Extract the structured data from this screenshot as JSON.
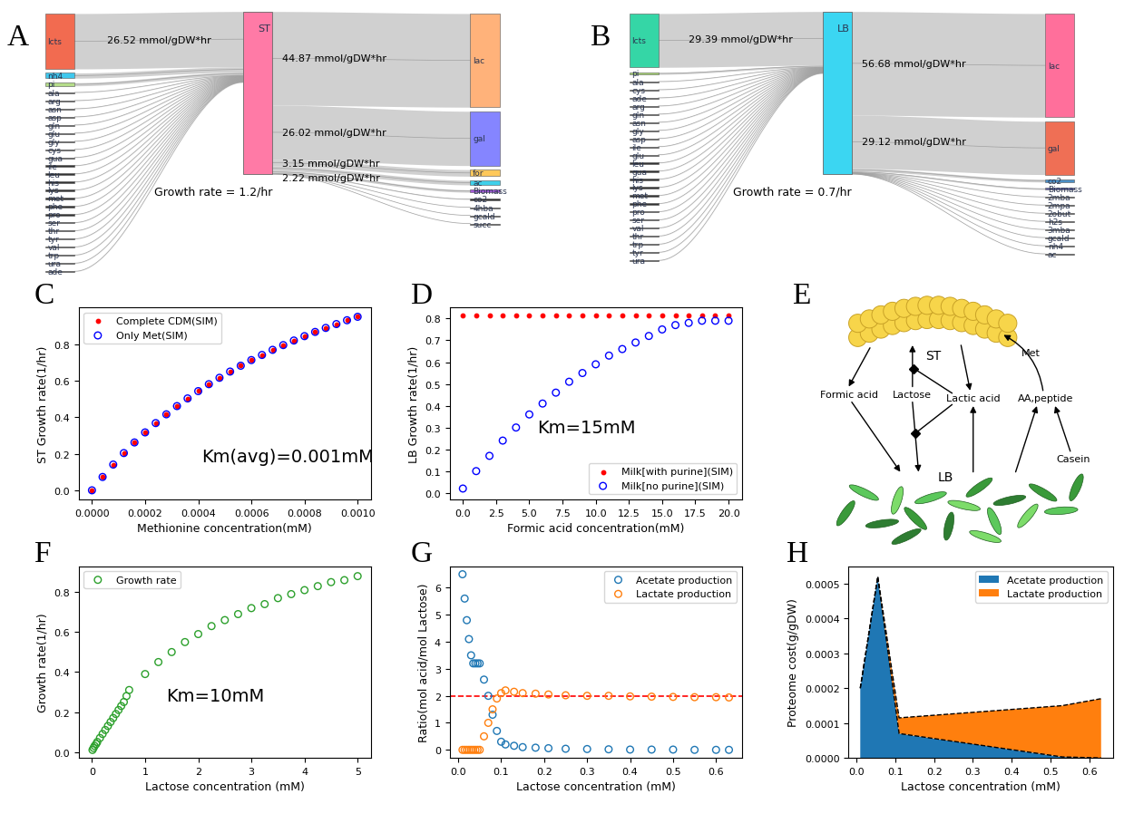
{
  "chart_data": [
    {
      "panel": "A",
      "type": "sankey",
      "center": {
        "name": "ST",
        "color": "#ff7aa6"
      },
      "annotation": "Growth rate = 1.2/hr",
      "inputs": [
        {
          "name": "lcts",
          "value": 26.52,
          "label": "26.52 mmol/gDW*hr",
          "color": "#f26b50"
        },
        {
          "name": "nh4",
          "value": 2.5,
          "color": "#3ec8ee"
        },
        {
          "name": "pi",
          "value": 1.5,
          "color": "#b5dd8a"
        },
        {
          "name": "ala",
          "value": 0.15
        },
        {
          "name": "arg",
          "value": 0.15
        },
        {
          "name": "asn",
          "value": 0.15
        },
        {
          "name": "asp",
          "value": 0.15
        },
        {
          "name": "gln",
          "value": 0.15
        },
        {
          "name": "glu",
          "value": 0.15
        },
        {
          "name": "gly",
          "value": 0.15
        },
        {
          "name": "cys",
          "value": 0.15
        },
        {
          "name": "gua",
          "value": 0.15
        },
        {
          "name": "ile",
          "value": 0.15
        },
        {
          "name": "leu",
          "value": 0.15
        },
        {
          "name": "his",
          "value": 0.15
        },
        {
          "name": "lys",
          "value": 0.15
        },
        {
          "name": "met",
          "value": 0.15
        },
        {
          "name": "phe",
          "value": 0.15
        },
        {
          "name": "pro",
          "value": 0.15
        },
        {
          "name": "ser",
          "value": 0.15
        },
        {
          "name": "thr",
          "value": 0.15
        },
        {
          "name": "tyr",
          "value": 0.15
        },
        {
          "name": "val",
          "value": 0.15
        },
        {
          "name": "trp",
          "value": 0.15
        },
        {
          "name": "ura",
          "value": 0.15
        },
        {
          "name": "ade",
          "value": 0.15
        }
      ],
      "outputs": [
        {
          "name": "lac",
          "value": 44.87,
          "label": "44.87 mmol/gDW*hr",
          "color": "#ffb27a"
        },
        {
          "name": "gal",
          "value": 26.02,
          "label": "26.02 mmol/gDW*hr",
          "color": "#8585ff"
        },
        {
          "name": "for",
          "value": 3.15,
          "label": "3.15 mmol/gDW*hr",
          "color": "#ffc85a"
        },
        {
          "name": "ac",
          "value": 2.22,
          "label": "2.22 mmol/gDW*hr",
          "color": "#3fd0ea"
        },
        {
          "name": "Biomass",
          "value": 1.2,
          "color": "#a259d9"
        },
        {
          "name": "co2",
          "value": 0.3
        },
        {
          "name": "4hba",
          "value": 0.05
        },
        {
          "name": "gcald",
          "value": 0.05
        },
        {
          "name": "succ",
          "value": 0.05
        }
      ]
    },
    {
      "panel": "B",
      "type": "sankey",
      "center": {
        "name": "LB",
        "color": "#3bd6f2"
      },
      "annotation": "Growth rate = 0.7/hr",
      "inputs": [
        {
          "name": "lcts",
          "value": 29.39,
          "label": "29.39 mmol/gDW*hr",
          "color": "#35d6a6"
        },
        {
          "name": "pi",
          "value": 1.0,
          "color": "#a8d672"
        },
        {
          "name": "ala",
          "value": 0.15
        },
        {
          "name": "cys",
          "value": 0.15
        },
        {
          "name": "ade",
          "value": 0.15
        },
        {
          "name": "arg",
          "value": 0.15
        },
        {
          "name": "gln",
          "value": 0.15
        },
        {
          "name": "asn",
          "value": 0.15
        },
        {
          "name": "gly",
          "value": 0.15
        },
        {
          "name": "asp",
          "value": 0.15
        },
        {
          "name": "ile",
          "value": 0.15
        },
        {
          "name": "glu",
          "value": 0.15
        },
        {
          "name": "leu",
          "value": 0.15
        },
        {
          "name": "gua",
          "value": 0.15
        },
        {
          "name": "his",
          "value": 0.15
        },
        {
          "name": "lys",
          "value": 0.15
        },
        {
          "name": "met",
          "value": 0.15
        },
        {
          "name": "phe",
          "value": 0.15
        },
        {
          "name": "pro",
          "value": 0.15
        },
        {
          "name": "ser",
          "value": 0.15
        },
        {
          "name": "val",
          "value": 0.15
        },
        {
          "name": "thr",
          "value": 0.15
        },
        {
          "name": "trp",
          "value": 0.15
        },
        {
          "name": "tyr",
          "value": 0.15
        },
        {
          "name": "ura",
          "value": 0.15
        }
      ],
      "outputs": [
        {
          "name": "lac",
          "value": 56.68,
          "label": "56.68 mmol/gDW*hr",
          "color": "#ff6f9b"
        },
        {
          "name": "gal",
          "value": 29.12,
          "label": "29.12 mmol/gDW*hr",
          "color": "#ef6f55"
        },
        {
          "name": "co2",
          "value": 1.5,
          "color": "#4a8fc7"
        },
        {
          "name": "Biomass",
          "value": 0.8,
          "color": "#5a5aa0"
        },
        {
          "name": "2mba",
          "value": 0.1
        },
        {
          "name": "2mpa",
          "value": 0.1
        },
        {
          "name": "2obut",
          "value": 0.1
        },
        {
          "name": "h2s",
          "value": 0.1
        },
        {
          "name": "3mba",
          "value": 0.1
        },
        {
          "name": "gcald",
          "value": 0.1
        },
        {
          "name": "nh4",
          "value": 0.1
        },
        {
          "name": "ac",
          "value": 0.1
        }
      ]
    },
    {
      "panel": "C",
      "type": "scatter",
      "x": [
        0,
        4e-05,
        8e-05,
        0.00012,
        0.00016,
        0.0002,
        0.00024,
        0.00028,
        0.00032,
        0.00036,
        0.0004,
        0.00044,
        0.00048,
        0.00052,
        0.00056,
        0.0006,
        0.00064,
        0.00068,
        0.00072,
        0.00076,
        0.0008,
        0.00084,
        0.00088,
        0.00092,
        0.00096,
        0.001
      ],
      "series": [
        {
          "name": "Complete CDM(SIM)",
          "color": "red",
          "marker": "dot",
          "values": [
            0,
            0.073,
            0.141,
            0.204,
            0.262,
            0.317,
            0.368,
            0.416,
            0.461,
            0.503,
            0.543,
            0.581,
            0.616,
            0.65,
            0.682,
            0.713,
            0.741,
            0.769,
            0.795,
            0.82,
            0.844,
            0.867,
            0.889,
            0.91,
            0.931,
            0.95
          ]
        },
        {
          "name": "Only Met(SIM)",
          "color": "blue",
          "marker": "open_circle",
          "values": [
            0,
            0.073,
            0.141,
            0.204,
            0.262,
            0.317,
            0.368,
            0.416,
            0.461,
            0.503,
            0.543,
            0.581,
            0.616,
            0.65,
            0.682,
            0.713,
            0.741,
            0.769,
            0.795,
            0.82,
            0.844,
            0.867,
            0.889,
            0.91,
            0.931,
            0.95
          ]
        }
      ],
      "x_label": "Methionine concentration(mM)",
      "y_label": "ST Growth rate(1/hr)",
      "annotation": "Km(avg)=0.001mM",
      "xlim": [
        -5e-05,
        0.00105
      ],
      "ylim": [
        -0.05,
        1.0
      ],
      "xticks": [
        {
          "value": 0,
          "label": "0.0000"
        },
        {
          "value": 0.0002,
          "label": "0.0002"
        },
        {
          "value": 0.0004,
          "label": "0.0004"
        },
        {
          "value": 0.0006,
          "label": "0.0006"
        },
        {
          "value": 0.0008,
          "label": "0.0008"
        },
        {
          "value": 0.001,
          "label": "0.0010"
        }
      ],
      "yticks": [
        {
          "value": 0,
          "label": "0.0"
        },
        {
          "value": 0.2,
          "label": "0.2"
        },
        {
          "value": 0.4,
          "label": "0.4"
        },
        {
          "value": 0.6,
          "label": "0.6"
        },
        {
          "value": 0.8,
          "label": "0.8"
        }
      ],
      "legend": "upper left"
    },
    {
      "panel": "D",
      "type": "scatter",
      "x": [
        0,
        1,
        2,
        3,
        4,
        5,
        6,
        7,
        8,
        9,
        10,
        11,
        12,
        13,
        14,
        15,
        16,
        17,
        18,
        19,
        20
      ],
      "series": [
        {
          "name": "Milk[with purine](SIM)",
          "color": "red",
          "marker": "dot",
          "values": [
            0.815,
            0.815,
            0.815,
            0.815,
            0.815,
            0.815,
            0.815,
            0.815,
            0.815,
            0.815,
            0.815,
            0.815,
            0.815,
            0.815,
            0.815,
            0.815,
            0.815,
            0.815,
            0.815,
            0.815,
            0.815
          ]
        },
        {
          "name": "Milk[no purine](SIM)",
          "color": "blue",
          "marker": "open_circle",
          "values": [
            0.02,
            0.1,
            0.17,
            0.24,
            0.3,
            0.36,
            0.41,
            0.46,
            0.51,
            0.55,
            0.59,
            0.63,
            0.66,
            0.69,
            0.72,
            0.75,
            0.77,
            0.78,
            0.79,
            0.79,
            0.79
          ]
        }
      ],
      "x_label": "Formic acid concentration(mM)",
      "y_label": "LB Growth rate(1/hr)",
      "annotation": "Km=15mM",
      "xlim": [
        -1,
        21
      ],
      "ylim": [
        -0.03,
        0.85
      ],
      "xticks": [
        {
          "value": 0,
          "label": "0.0"
        },
        {
          "value": 2.5,
          "label": "2.5"
        },
        {
          "value": 5,
          "label": "5.0"
        },
        {
          "value": 7.5,
          "label": "7.5"
        },
        {
          "value": 10,
          "label": "10.0"
        },
        {
          "value": 12.5,
          "label": "12.5"
        },
        {
          "value": 15,
          "label": "15.0"
        },
        {
          "value": 17.5,
          "label": "17.5"
        },
        {
          "value": 20,
          "label": "20.0"
        }
      ],
      "yticks": [
        {
          "value": 0,
          "label": "0.0"
        },
        0.1,
        0.2,
        0.3,
        0.4,
        0.5,
        0.6,
        0.7,
        0.8
      ],
      "legend": "lower right"
    },
    {
      "panel": "E",
      "type": "diagram",
      "nodes": {
        "st": "ST",
        "lb": "LB",
        "formic": "Formic acid",
        "lactose": "Lactose",
        "lactic": "Lactic acid",
        "aa": "AA,peptide",
        "met": "Met",
        "casein": "Casein"
      }
    },
    {
      "panel": "F",
      "type": "scatter",
      "x": [
        0.01,
        0.03,
        0.05,
        0.08,
        0.1,
        0.15,
        0.2,
        0.25,
        0.3,
        0.35,
        0.4,
        0.45,
        0.5,
        0.55,
        0.6,
        0.65,
        0.7,
        1.0,
        1.25,
        1.5,
        1.75,
        2.0,
        2.25,
        2.5,
        2.75,
        3.0,
        3.25,
        3.5,
        3.75,
        4.0,
        4.25,
        4.5,
        4.75,
        5.0
      ],
      "series": [
        {
          "name": "Growth rate",
          "color": "#2ca02c",
          "marker": "open_circle",
          "values": [
            0.01,
            0.02,
            0.03,
            0.04,
            0.05,
            0.07,
            0.09,
            0.11,
            0.13,
            0.15,
            0.17,
            0.19,
            0.21,
            0.23,
            0.25,
            0.28,
            0.31,
            0.39,
            0.45,
            0.5,
            0.55,
            0.59,
            0.63,
            0.66,
            0.69,
            0.72,
            0.74,
            0.77,
            0.79,
            0.81,
            0.83,
            0.85,
            0.86,
            0.88
          ]
        }
      ],
      "x_label": "Lactose concentration (mM)",
      "y_label": "Growth rate(1/hr)",
      "annotation": "Km=10mM",
      "xlim": [
        -0.25,
        5.25
      ],
      "ylim": [
        -0.03,
        0.93
      ],
      "xticks": [
        0,
        1,
        2,
        3,
        4,
        5
      ],
      "yticks": [
        {
          "value": 0,
          "label": "0.0"
        },
        {
          "value": 0.2,
          "label": "0.2"
        },
        {
          "value": 0.4,
          "label": "0.4"
        },
        {
          "value": 0.6,
          "label": "0.6"
        },
        {
          "value": 0.8,
          "label": "0.8"
        }
      ],
      "legend": "upper left"
    },
    {
      "panel": "G",
      "type": "scatter",
      "x": [
        0.01,
        0.015,
        0.02,
        0.025,
        0.03,
        0.035,
        0.04,
        0.045,
        0.05,
        0.06,
        0.07,
        0.08,
        0.09,
        0.1,
        0.11,
        0.13,
        0.15,
        0.18,
        0.21,
        0.25,
        0.3,
        0.35,
        0.4,
        0.45,
        0.5,
        0.55,
        0.6,
        0.63
      ],
      "series": [
        {
          "name": "Acetate production",
          "color": "#1f77b4",
          "marker": "open_circle",
          "values": [
            6.5,
            5.6,
            4.8,
            4.1,
            3.5,
            3.2,
            3.2,
            3.2,
            3.2,
            2.6,
            2.0,
            1.3,
            0.7,
            0.3,
            0.2,
            0.15,
            0.1,
            0.08,
            0.06,
            0.04,
            0.03,
            0.02,
            0.01,
            0.01,
            0.01,
            0,
            0,
            0
          ]
        },
        {
          "name": "Lactate production",
          "color": "#ff7f0e",
          "marker": "open_circle",
          "values": [
            0,
            0,
            0,
            0,
            0,
            0,
            0,
            0,
            0,
            0.5,
            1.0,
            1.5,
            1.9,
            2.1,
            2.2,
            2.15,
            2.1,
            2.08,
            2.05,
            2.02,
            2.0,
            2.0,
            1.98,
            1.97,
            1.96,
            1.95,
            1.95,
            1.94
          ]
        }
      ],
      "hline": {
        "value": 2,
        "color": "red",
        "line_style": "dashed"
      },
      "x_label": "Lactose concentration (mM)",
      "y_label": "Ratio(mol acid/mol Lactose)",
      "xlim": [
        -0.02,
        0.66
      ],
      "ylim": [
        -0.3,
        6.8
      ],
      "xticks": [
        {
          "value": 0,
          "label": "0.0"
        },
        0.1,
        0.2,
        0.3,
        0.4,
        0.5,
        0.6
      ],
      "yticks": [
        0,
        1,
        2,
        3,
        4,
        5,
        6
      ],
      "legend": "upper right"
    },
    {
      "panel": "H",
      "type": "area",
      "stacked": true,
      "x": [
        0.01,
        0.055,
        0.11,
        0.53,
        0.63
      ],
      "series": [
        {
          "name": "Acetate production",
          "color": "#1f77b4",
          "values": [
            0.0002,
            0.00052,
            7e-05,
            3e-06,
            0.0
          ]
        },
        {
          "name": "Lactate production",
          "color": "#ff7f0e",
          "values": [
            0.0,
            0.0,
            4.5e-05,
            0.000147,
            0.00017
          ]
        }
      ],
      "x_label": "Lactose concentration (mM)",
      "y_label": "Proteome cost(g/gDW)",
      "xlim": [
        -0.02,
        0.66
      ],
      "ylim": [
        0,
        0.00055
      ],
      "xticks": [
        {
          "value": 0,
          "label": "0.0"
        },
        0.1,
        0.2,
        0.3,
        0.4,
        0.5,
        0.6
      ],
      "yticks": [
        {
          "value": 0,
          "label": "0.0000"
        },
        {
          "value": 0.0001,
          "label": "0.0001"
        },
        {
          "value": 0.0002,
          "label": "0.0002"
        },
        {
          "value": 0.0003,
          "label": "0.0003"
        },
        {
          "value": 0.0004,
          "label": "0.0004"
        },
        {
          "value": 0.0005,
          "label": "0.0005"
        }
      ],
      "legend": "upper right"
    }
  ]
}
